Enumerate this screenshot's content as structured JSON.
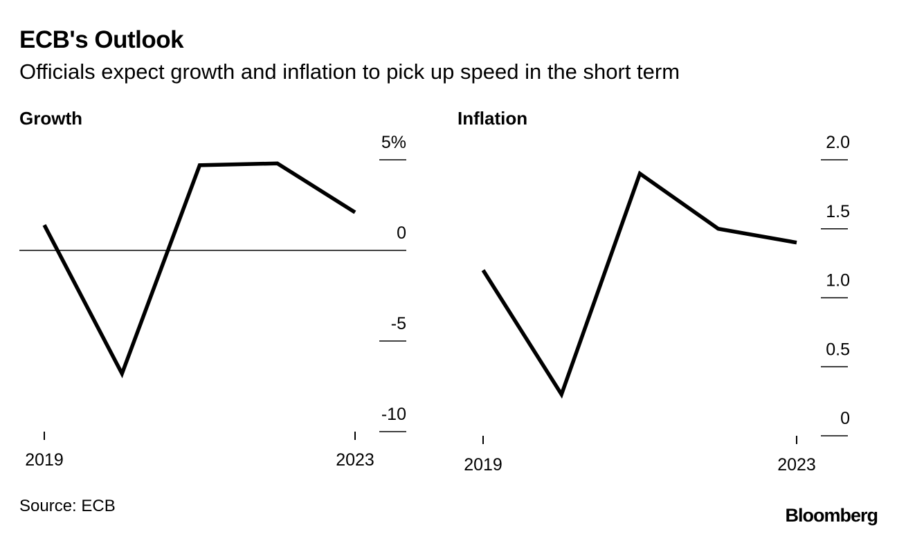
{
  "title": "ECB's Outlook",
  "subtitle": "Officials expect growth and inflation to pick up speed in the short term",
  "source": "Source: ECB",
  "brand": "Bloomberg",
  "colors": {
    "line": "#000000",
    "background": "#ffffff"
  },
  "chart_data": [
    {
      "type": "line",
      "title": "Growth",
      "x": [
        2019,
        2020,
        2021,
        2022,
        2023
      ],
      "x_tick_labels": [
        "2019",
        "2023"
      ],
      "series": [
        {
          "values": [
            1.4,
            -6.8,
            4.7,
            4.8,
            2.1
          ]
        }
      ],
      "y_ticks": [
        5,
        0,
        -5,
        -10
      ],
      "y_tick_labels": [
        "5%",
        "0",
        "-5",
        "-10"
      ],
      "ylim": [
        -10,
        5
      ],
      "zero_line": true,
      "grid": false
    },
    {
      "type": "line",
      "title": "Inflation",
      "x": [
        2019,
        2020,
        2021,
        2022,
        2023
      ],
      "x_tick_labels": [
        "2019",
        "2023"
      ],
      "series": [
        {
          "values": [
            1.2,
            0.3,
            1.9,
            1.5,
            1.4
          ]
        }
      ],
      "y_ticks": [
        2.0,
        1.5,
        1.0,
        0.5,
        0
      ],
      "y_tick_labels": [
        "2.0",
        "1.5",
        "1.0",
        "0.5",
        "0"
      ],
      "ylim": [
        0,
        2.0
      ],
      "grid": false
    }
  ]
}
